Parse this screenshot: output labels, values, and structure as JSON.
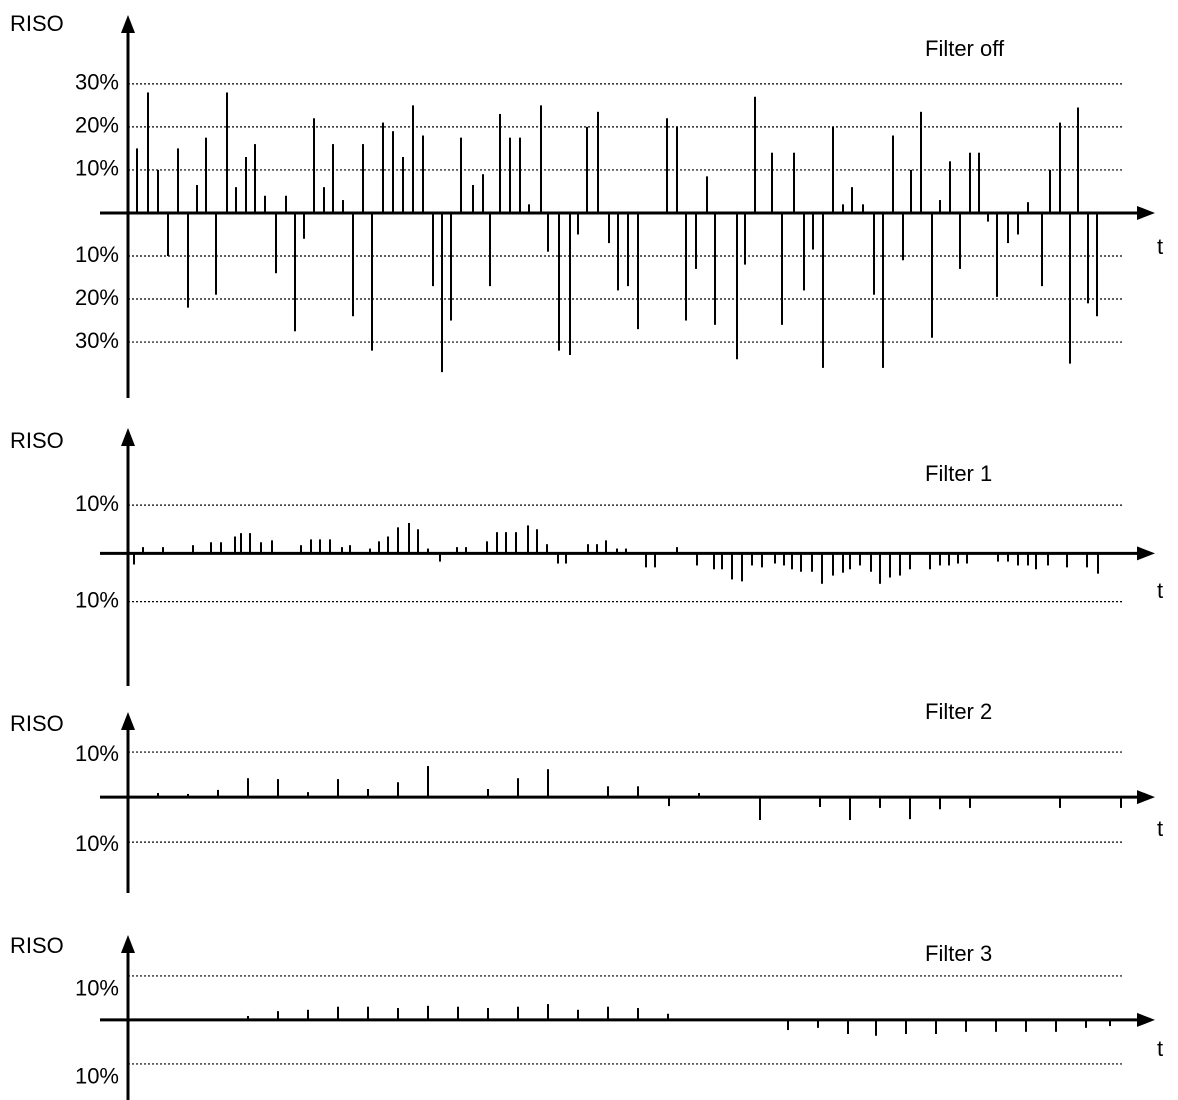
{
  "chart_data": [
    {
      "type": "spike",
      "title": "Filter off",
      "y_label": "RISO",
      "x_label": "t",
      "color": "#000000",
      "xlim": [
        -28,
        1027
      ],
      "ylim": [
        -43,
        46
      ],
      "grid": true,
      "yticks": [
        {
          "value": 30,
          "label": "30%"
        },
        {
          "value": 20,
          "label": "20%"
        },
        {
          "value": 10,
          "label": "10%"
        },
        {
          "value": -10,
          "label": "10%"
        },
        {
          "value": -20,
          "label": "20%"
        },
        {
          "value": -30,
          "label": "30%"
        }
      ],
      "x": [
        9,
        20,
        30,
        40,
        50,
        60,
        69,
        78,
        88,
        99,
        108,
        118,
        127,
        137,
        148,
        158,
        167,
        176,
        186,
        196,
        205,
        215,
        225,
        235,
        244,
        255,
        265,
        275,
        285,
        295,
        305,
        314,
        323,
        333,
        345,
        355,
        362,
        372,
        382,
        392,
        401,
        413,
        420,
        431,
        442,
        450,
        459,
        470,
        481,
        490,
        500,
        510,
        539,
        549,
        558,
        568,
        579,
        587,
        609,
        617,
        627,
        644,
        654,
        666,
        676,
        685,
        695,
        705,
        715,
        724,
        735,
        746,
        755,
        765,
        775,
        783,
        793,
        804,
        812,
        822,
        832,
        842,
        851,
        860,
        869,
        880,
        890,
        900,
        914,
        922,
        932,
        942,
        950,
        960,
        969
      ],
      "values": [
        15,
        28,
        10,
        -10,
        15,
        -22,
        6.5,
        17.5,
        -19,
        28,
        6,
        13,
        16,
        4,
        -14,
        4,
        -27.5,
        -6,
        22,
        6,
        16,
        3,
        -24,
        16,
        -32,
        21,
        19,
        13,
        25,
        18,
        -17,
        -37,
        -25,
        17.5,
        6.5,
        9,
        -17,
        23,
        17.5,
        17.5,
        2,
        25,
        -9,
        -32,
        -33,
        -5,
        20,
        23.5,
        -7,
        -18,
        -17,
        -27,
        22,
        20,
        -25,
        -13,
        8.5,
        -26,
        -34,
        -12,
        27,
        14,
        -26,
        14,
        -18,
        -8.5,
        -36,
        20,
        2,
        6,
        2,
        -19,
        -36,
        18,
        -11,
        10,
        23.5,
        -29,
        3,
        12,
        -13,
        14,
        14,
        -2,
        -19.5,
        -7,
        -5,
        2.5,
        -17,
        10,
        21,
        -35,
        24.5,
        -21,
        -24
      ]
    },
    {
      "type": "spike",
      "title": "Filter 1",
      "y_label": "RISO",
      "x_label": "t",
      "color": "#000000",
      "xlim": [
        -28,
        1027
      ],
      "ylim": [
        -27.5,
        26
      ],
      "grid": true,
      "yticks": [
        {
          "value": 10,
          "label": "10%"
        },
        {
          "value": -10,
          "label": "10%"
        }
      ],
      "x": [
        6,
        15,
        35,
        65,
        83,
        93,
        107,
        113,
        122,
        133,
        144,
        173,
        183,
        192,
        202,
        214,
        222,
        242,
        251,
        260,
        270,
        281,
        290,
        300,
        312,
        329,
        338,
        359,
        369,
        378,
        388,
        400,
        409,
        419,
        430,
        438,
        460,
        469,
        478,
        489,
        498,
        518,
        527,
        549,
        569,
        586,
        594,
        604,
        614,
        624,
        634,
        647,
        656,
        664,
        673,
        684,
        694,
        705,
        715,
        722,
        732,
        743,
        752,
        762,
        772,
        782,
        802,
        812,
        821,
        830,
        839,
        870,
        880,
        890,
        900,
        908,
        920,
        939,
        959,
        970
      ],
      "values": [
        -2.3,
        1.3,
        1.3,
        1.7,
        2.3,
        2.3,
        3.5,
        4.2,
        4.2,
        2.3,
        2.7,
        1.7,
        2.9,
        2.9,
        2.9,
        1.3,
        1.7,
        1.0,
        2.5,
        3.5,
        5.4,
        6.3,
        5,
        1,
        -1.7,
        1.3,
        1.3,
        2.5,
        4.4,
        4.4,
        4.4,
        5.8,
        5,
        1.9,
        -2.1,
        -2.1,
        1.9,
        1.9,
        2.7,
        1,
        1,
        -2.9,
        -2.9,
        1.3,
        -2.5,
        -3.3,
        -3.3,
        -5.4,
        -5.8,
        -2.5,
        -2.9,
        -2.1,
        -2.5,
        -3.3,
        -3.8,
        -3.8,
        -6.3,
        -4.6,
        -4,
        -3.3,
        -2.5,
        -3.8,
        -6.3,
        -5,
        -4.6,
        -3.3,
        -3.3,
        -2.5,
        -2.5,
        -2.1,
        -2.1,
        -1.7,
        -1.7,
        -2.5,
        -2.5,
        -3.3,
        -2.5,
        -2.9,
        -2.9,
        -4.2
      ]
    },
    {
      "type": "spike",
      "title": "Filter 2",
      "y_label": "RISO",
      "x_label": "t",
      "color": "#000000",
      "xlim": [
        -28,
        1027
      ],
      "ylim": [
        -21.3,
        18.9
      ],
      "grid": true,
      "yticks": [
        {
          "value": 10,
          "label": "10%"
        },
        {
          "value": -10,
          "label": "10%"
        }
      ],
      "x": [
        30,
        60,
        90,
        120,
        150,
        180,
        210,
        240,
        270,
        300,
        360,
        390,
        420,
        480,
        510,
        541,
        571,
        632,
        692,
        722,
        752,
        782,
        812,
        842,
        932,
        993
      ],
      "values": [
        0.9,
        0.7,
        1.6,
        4.2,
        4,
        1.1,
        4,
        1.8,
        3.3,
        6.9,
        1.8,
        4.2,
        6.2,
        2.4,
        2.4,
        -2,
        0.9,
        -5.1,
        -2.2,
        -5.1,
        -2.4,
        -4.9,
        -2.7,
        -2.4,
        -2.4,
        -2.4
      ]
    },
    {
      "type": "spike",
      "title": "Filter 3",
      "y_label": "RISO",
      "x_label": "t",
      "color": "#000000",
      "xlim": [
        -28,
        1027
      ],
      "ylim": [
        -18.2,
        19.3
      ],
      "grid": true,
      "yticks": [
        {
          "value": 10,
          "label": "10%"
        },
        {
          "value": -10,
          "label": "10%"
        }
      ],
      "x": [
        120,
        150,
        180,
        210,
        240,
        270,
        300,
        330,
        360,
        390,
        420,
        450,
        480,
        510,
        540,
        660,
        690,
        720,
        748,
        778,
        808,
        838,
        868,
        898,
        928,
        958,
        982
      ],
      "values": [
        0.9,
        2,
        2.3,
        3,
        3,
        2.7,
        3.2,
        3,
        2.7,
        3,
        3.6,
        2.3,
        3,
        2.7,
        1.4,
        -2.3,
        -1.8,
        -3.2,
        -3.6,
        -3.2,
        -3.2,
        -2.7,
        -2.7,
        -2.7,
        -2.7,
        -1.8,
        -1.4
      ]
    }
  ]
}
